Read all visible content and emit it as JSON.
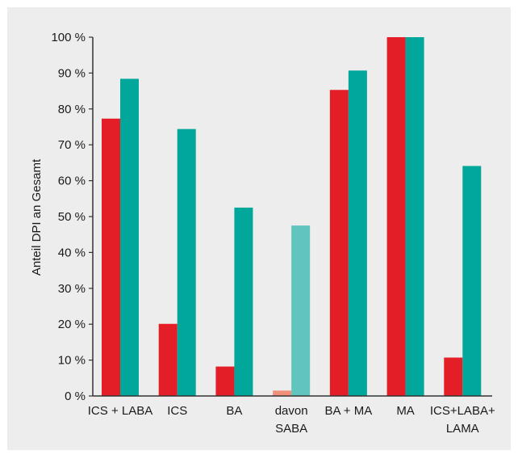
{
  "colors": {
    "panel_background": "#ededed",
    "series_1": "#e41e26",
    "series_2": "#00a79a",
    "series_1_light": "#f0907c",
    "series_2_light": "#5fc5bd",
    "axis": "#333333"
  },
  "chart_data": {
    "type": "bar",
    "title": "",
    "xlabel": "",
    "ylabel": "Anteil DPI an Gesamt",
    "ylim": [
      0,
      100
    ],
    "y_ticks": [
      0,
      10,
      20,
      30,
      40,
      50,
      60,
      70,
      80,
      90,
      100
    ],
    "y_tick_labels": [
      "0 %",
      "10 %",
      "20 %",
      "30 %",
      "40 %",
      "50 %",
      "60 %",
      "70 %",
      "80 %",
      "90 %",
      "100 %"
    ],
    "grid": false,
    "legend": "none",
    "categories": [
      [
        "ICS + LABA"
      ],
      [
        "ICS"
      ],
      [
        "BA"
      ],
      [
        "davon",
        "SABA"
      ],
      [
        "BA + MA"
      ],
      [
        "MA"
      ],
      [
        "ICS+LABA+",
        "LAMA"
      ]
    ],
    "series": [
      {
        "values": [
          77.3,
          20.1,
          8.2,
          1.5,
          85.3,
          100,
          10.7
        ]
      },
      {
        "values": [
          88.4,
          74.4,
          52.5,
          47.5,
          90.7,
          100,
          64.1
        ]
      }
    ],
    "highlight_lighter_category_index": 3
  }
}
